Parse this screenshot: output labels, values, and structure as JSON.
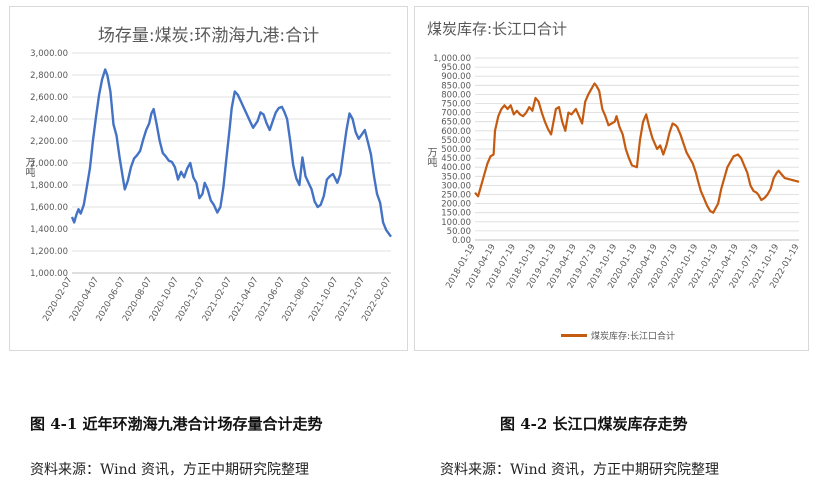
{
  "chart_data": [
    {
      "type": "line",
      "title": "场存量:煤炭:环渤海九港:合计",
      "ylabel": "万吨",
      "ylim": [
        1000,
        3000
      ],
      "yticks": [
        "1,000.00",
        "1,200.00",
        "1,400.00",
        "1,600.00",
        "1,800.00",
        "2,000.00",
        "2,200.00",
        "2,400.00",
        "2,600.00",
        "2,800.00",
        "3,000.00"
      ],
      "xtick_labels": [
        "2020-02-07",
        "2020-04-07",
        "2020-06-07",
        "2020-08-07",
        "2020-10-07",
        "2020-12-07",
        "2021-02-07",
        "2021-04-07",
        "2021-06-07",
        "2021-08-07",
        "2021-10-07",
        "2021-12-07",
        "2022-02-07"
      ],
      "x_start": "2020-02-07",
      "x_end": "2022-02-07",
      "grid": true,
      "color": "#4472c4",
      "series": [
        {
          "name": "",
          "points": [
            [
              "2020-02-07",
              1510
            ],
            [
              "2020-02-12",
              1460
            ],
            [
              "2020-02-17",
              1530
            ],
            [
              "2020-02-22",
              1580
            ],
            [
              "2020-02-27",
              1540
            ],
            [
              "2020-03-05",
              1620
            ],
            [
              "2020-03-12",
              1780
            ],
            [
              "2020-03-19",
              1950
            ],
            [
              "2020-03-26",
              2200
            ],
            [
              "2020-04-02",
              2420
            ],
            [
              "2020-04-09",
              2620
            ],
            [
              "2020-04-16",
              2760
            ],
            [
              "2020-04-23",
              2850
            ],
            [
              "2020-04-28",
              2800
            ],
            [
              "2020-05-05",
              2650
            ],
            [
              "2020-05-12",
              2350
            ],
            [
              "2020-05-19",
              2250
            ],
            [
              "2020-05-26",
              2050
            ],
            [
              "2020-06-02",
              1880
            ],
            [
              "2020-06-07",
              1760
            ],
            [
              "2020-06-14",
              1840
            ],
            [
              "2020-06-21",
              1960
            ],
            [
              "2020-06-28",
              2040
            ],
            [
              "2020-07-05",
              2070
            ],
            [
              "2020-07-12",
              2110
            ],
            [
              "2020-07-19",
              2210
            ],
            [
              "2020-07-26",
              2300
            ],
            [
              "2020-08-02",
              2360
            ],
            [
              "2020-08-07",
              2450
            ],
            [
              "2020-08-12",
              2490
            ],
            [
              "2020-08-19",
              2350
            ],
            [
              "2020-08-26",
              2200
            ],
            [
              "2020-09-02",
              2090
            ],
            [
              "2020-09-09",
              2060
            ],
            [
              "2020-09-16",
              2020
            ],
            [
              "2020-09-23",
              2010
            ],
            [
              "2020-09-30",
              1960
            ],
            [
              "2020-10-07",
              1850
            ],
            [
              "2020-10-14",
              1920
            ],
            [
              "2020-10-21",
              1870
            ],
            [
              "2020-10-28",
              1950
            ],
            [
              "2020-11-04",
              2000
            ],
            [
              "2020-11-11",
              1870
            ],
            [
              "2020-11-18",
              1820
            ],
            [
              "2020-11-25",
              1680
            ],
            [
              "2020-12-02",
              1720
            ],
            [
              "2020-12-07",
              1820
            ],
            [
              "2020-12-14",
              1760
            ],
            [
              "2020-12-21",
              1660
            ],
            [
              "2020-12-28",
              1620
            ],
            [
              "2021-01-05",
              1550
            ],
            [
              "2021-01-12",
              1600
            ],
            [
              "2021-01-19",
              1780
            ],
            [
              "2021-01-26",
              2050
            ],
            [
              "2021-02-02",
              2300
            ],
            [
              "2021-02-07",
              2500
            ],
            [
              "2021-02-14",
              2650
            ],
            [
              "2021-02-21",
              2620
            ],
            [
              "2021-02-28",
              2560
            ],
            [
              "2021-03-07",
              2500
            ],
            [
              "2021-03-14",
              2440
            ],
            [
              "2021-03-21",
              2380
            ],
            [
              "2021-03-28",
              2320
            ],
            [
              "2021-04-07",
              2380
            ],
            [
              "2021-04-14",
              2460
            ],
            [
              "2021-04-21",
              2440
            ],
            [
              "2021-04-28",
              2360
            ],
            [
              "2021-05-05",
              2300
            ],
            [
              "2021-05-12",
              2380
            ],
            [
              "2021-05-19",
              2460
            ],
            [
              "2021-05-26",
              2500
            ],
            [
              "2021-06-02",
              2510
            ],
            [
              "2021-06-07",
              2470
            ],
            [
              "2021-06-14",
              2400
            ],
            [
              "2021-06-21",
              2200
            ],
            [
              "2021-06-28",
              1980
            ],
            [
              "2021-07-05",
              1860
            ],
            [
              "2021-07-12",
              1800
            ],
            [
              "2021-07-19",
              2050
            ],
            [
              "2021-07-26",
              1880
            ],
            [
              "2021-08-02",
              1820
            ],
            [
              "2021-08-09",
              1760
            ],
            [
              "2021-08-16",
              1650
            ],
            [
              "2021-08-23",
              1600
            ],
            [
              "2021-08-30",
              1620
            ],
            [
              "2021-09-06",
              1700
            ],
            [
              "2021-09-13",
              1850
            ],
            [
              "2021-09-20",
              1880
            ],
            [
              "2021-09-27",
              1900
            ],
            [
              "2021-10-07",
              1820
            ],
            [
              "2021-10-14",
              1900
            ],
            [
              "2021-10-21",
              2100
            ],
            [
              "2021-10-28",
              2300
            ],
            [
              "2021-11-04",
              2450
            ],
            [
              "2021-11-11",
              2400
            ],
            [
              "2021-11-18",
              2280
            ],
            [
              "2021-11-25",
              2220
            ],
            [
              "2021-12-02",
              2260
            ],
            [
              "2021-12-09",
              2300
            ],
            [
              "2021-12-16",
              2190
            ],
            [
              "2021-12-23",
              2080
            ],
            [
              "2021-12-30",
              1880
            ],
            [
              "2022-01-06",
              1720
            ],
            [
              "2022-01-13",
              1640
            ],
            [
              "2022-01-20",
              1460
            ],
            [
              "2022-01-27",
              1390
            ],
            [
              "2022-02-07",
              1330
            ]
          ]
        }
      ]
    },
    {
      "type": "line",
      "title": "煤炭库存:长江口合计",
      "ylabel": "万吨",
      "ylim": [
        0,
        1000
      ],
      "yticks": [
        "0.00",
        "50.00",
        "100.00",
        "150.00",
        "200.00",
        "250.00",
        "300.00",
        "350.00",
        "400.00",
        "450.00",
        "500.00",
        "550.00",
        "600.00",
        "650.00",
        "700.00",
        "750.00",
        "800.00",
        "850.00",
        "900.00",
        "950.00",
        "1,000.00"
      ],
      "xtick_labels": [
        "2018-01-19",
        "2018-04-19",
        "2018-07-19",
        "2018-10-19",
        "2019-01-19",
        "2019-04-19",
        "2019-07-19",
        "2019-10-19",
        "2020-01-19",
        "2020-04-19",
        "2020-07-19",
        "2020-10-19",
        "2021-01-19",
        "2021-04-19",
        "2021-07-19",
        "2021-10-19",
        "2022-01-19"
      ],
      "x_start": "2018-01-19",
      "x_end": "2022-01-19",
      "grid": true,
      "color": "#c55a11",
      "legend": "煤炭库存:长江口合计",
      "legend_position": "bottom",
      "series": [
        {
          "name": "煤炭库存:长江口合计",
          "points": [
            [
              "2018-01-19",
              260
            ],
            [
              "2018-02-02",
              240
            ],
            [
              "2018-02-16",
              300
            ],
            [
              "2018-03-02",
              360
            ],
            [
              "2018-03-16",
              420
            ],
            [
              "2018-03-30",
              460
            ],
            [
              "2018-04-13",
              470
            ],
            [
              "2018-04-19",
              600
            ],
            [
              "2018-05-04",
              680
            ],
            [
              "2018-05-18",
              720
            ],
            [
              "2018-06-01",
              740
            ],
            [
              "2018-06-15",
              720
            ],
            [
              "2018-06-29",
              740
            ],
            [
              "2018-07-13",
              690
            ],
            [
              "2018-07-27",
              710
            ],
            [
              "2018-08-10",
              690
            ],
            [
              "2018-08-24",
              680
            ],
            [
              "2018-09-07",
              700
            ],
            [
              "2018-09-21",
              730
            ],
            [
              "2018-10-05",
              710
            ],
            [
              "2018-10-19",
              780
            ],
            [
              "2018-11-02",
              760
            ],
            [
              "2018-11-16",
              700
            ],
            [
              "2018-11-30",
              650
            ],
            [
              "2018-12-14",
              610
            ],
            [
              "2018-12-28",
              580
            ],
            [
              "2019-01-19",
              720
            ],
            [
              "2019-02-02",
              730
            ],
            [
              "2019-02-16",
              650
            ],
            [
              "2019-03-02",
              600
            ],
            [
              "2019-03-16",
              700
            ],
            [
              "2019-03-30",
              690
            ],
            [
              "2019-04-19",
              720
            ],
            [
              "2019-05-03",
              680
            ],
            [
              "2019-05-17",
              640
            ],
            [
              "2019-05-31",
              760
            ],
            [
              "2019-06-14",
              800
            ],
            [
              "2019-06-28",
              830
            ],
            [
              "2019-07-12",
              860
            ],
            [
              "2019-07-19",
              850
            ],
            [
              "2019-08-02",
              820
            ],
            [
              "2019-08-16",
              720
            ],
            [
              "2019-08-30",
              680
            ],
            [
              "2019-09-13",
              630
            ],
            [
              "2019-09-27",
              640
            ],
            [
              "2019-10-11",
              650
            ],
            [
              "2019-10-19",
              680
            ],
            [
              "2019-11-02",
              620
            ],
            [
              "2019-11-16",
              580
            ],
            [
              "2019-11-30",
              500
            ],
            [
              "2019-12-14",
              450
            ],
            [
              "2019-12-28",
              410
            ],
            [
              "2020-01-19",
              400
            ],
            [
              "2020-02-02",
              550
            ],
            [
              "2020-02-16",
              650
            ],
            [
              "2020-03-01",
              690
            ],
            [
              "2020-03-15",
              620
            ],
            [
              "2020-03-29",
              560
            ],
            [
              "2020-04-19",
              500
            ],
            [
              "2020-05-03",
              520
            ],
            [
              "2020-05-17",
              470
            ],
            [
              "2020-05-31",
              520
            ],
            [
              "2020-06-14",
              590
            ],
            [
              "2020-06-28",
              640
            ],
            [
              "2020-07-12",
              630
            ],
            [
              "2020-07-19",
              620
            ],
            [
              "2020-08-02",
              580
            ],
            [
              "2020-08-16",
              530
            ],
            [
              "2020-08-30",
              480
            ],
            [
              "2020-09-13",
              450
            ],
            [
              "2020-09-27",
              420
            ],
            [
              "2020-10-11",
              370
            ],
            [
              "2020-10-19",
              330
            ],
            [
              "2020-11-02",
              270
            ],
            [
              "2020-11-16",
              230
            ],
            [
              "2020-11-30",
              190
            ],
            [
              "2020-12-14",
              160
            ],
            [
              "2020-12-28",
              150
            ],
            [
              "2021-01-19",
              200
            ],
            [
              "2021-02-02",
              280
            ],
            [
              "2021-02-16",
              340
            ],
            [
              "2021-03-02",
              400
            ],
            [
              "2021-03-16",
              430
            ],
            [
              "2021-03-30",
              460
            ],
            [
              "2021-04-19",
              470
            ],
            [
              "2021-05-03",
              450
            ],
            [
              "2021-05-17",
              410
            ],
            [
              "2021-05-31",
              370
            ],
            [
              "2021-06-14",
              300
            ],
            [
              "2021-06-28",
              270
            ],
            [
              "2021-07-12",
              260
            ],
            [
              "2021-07-19",
              250
            ],
            [
              "2021-08-02",
              220
            ],
            [
              "2021-08-16",
              230
            ],
            [
              "2021-08-30",
              250
            ],
            [
              "2021-09-13",
              280
            ],
            [
              "2021-09-27",
              340
            ],
            [
              "2021-10-11",
              370
            ],
            [
              "2021-10-19",
              380
            ],
            [
              "2021-11-02",
              360
            ],
            [
              "2021-11-16",
              340
            ],
            [
              "2022-01-19",
              320
            ]
          ]
        }
      ]
    }
  ],
  "captions": {
    "left_caption": "图 4-1 近年环渤海九港合计场存量合计走势",
    "right_caption": "图 4-2 长江口煤炭库存走势",
    "left_source": "资料来源：Wind 资讯，方正中期研究院整理",
    "right_source": "资料来源：Wind 资讯，方正中期研究院整理"
  }
}
